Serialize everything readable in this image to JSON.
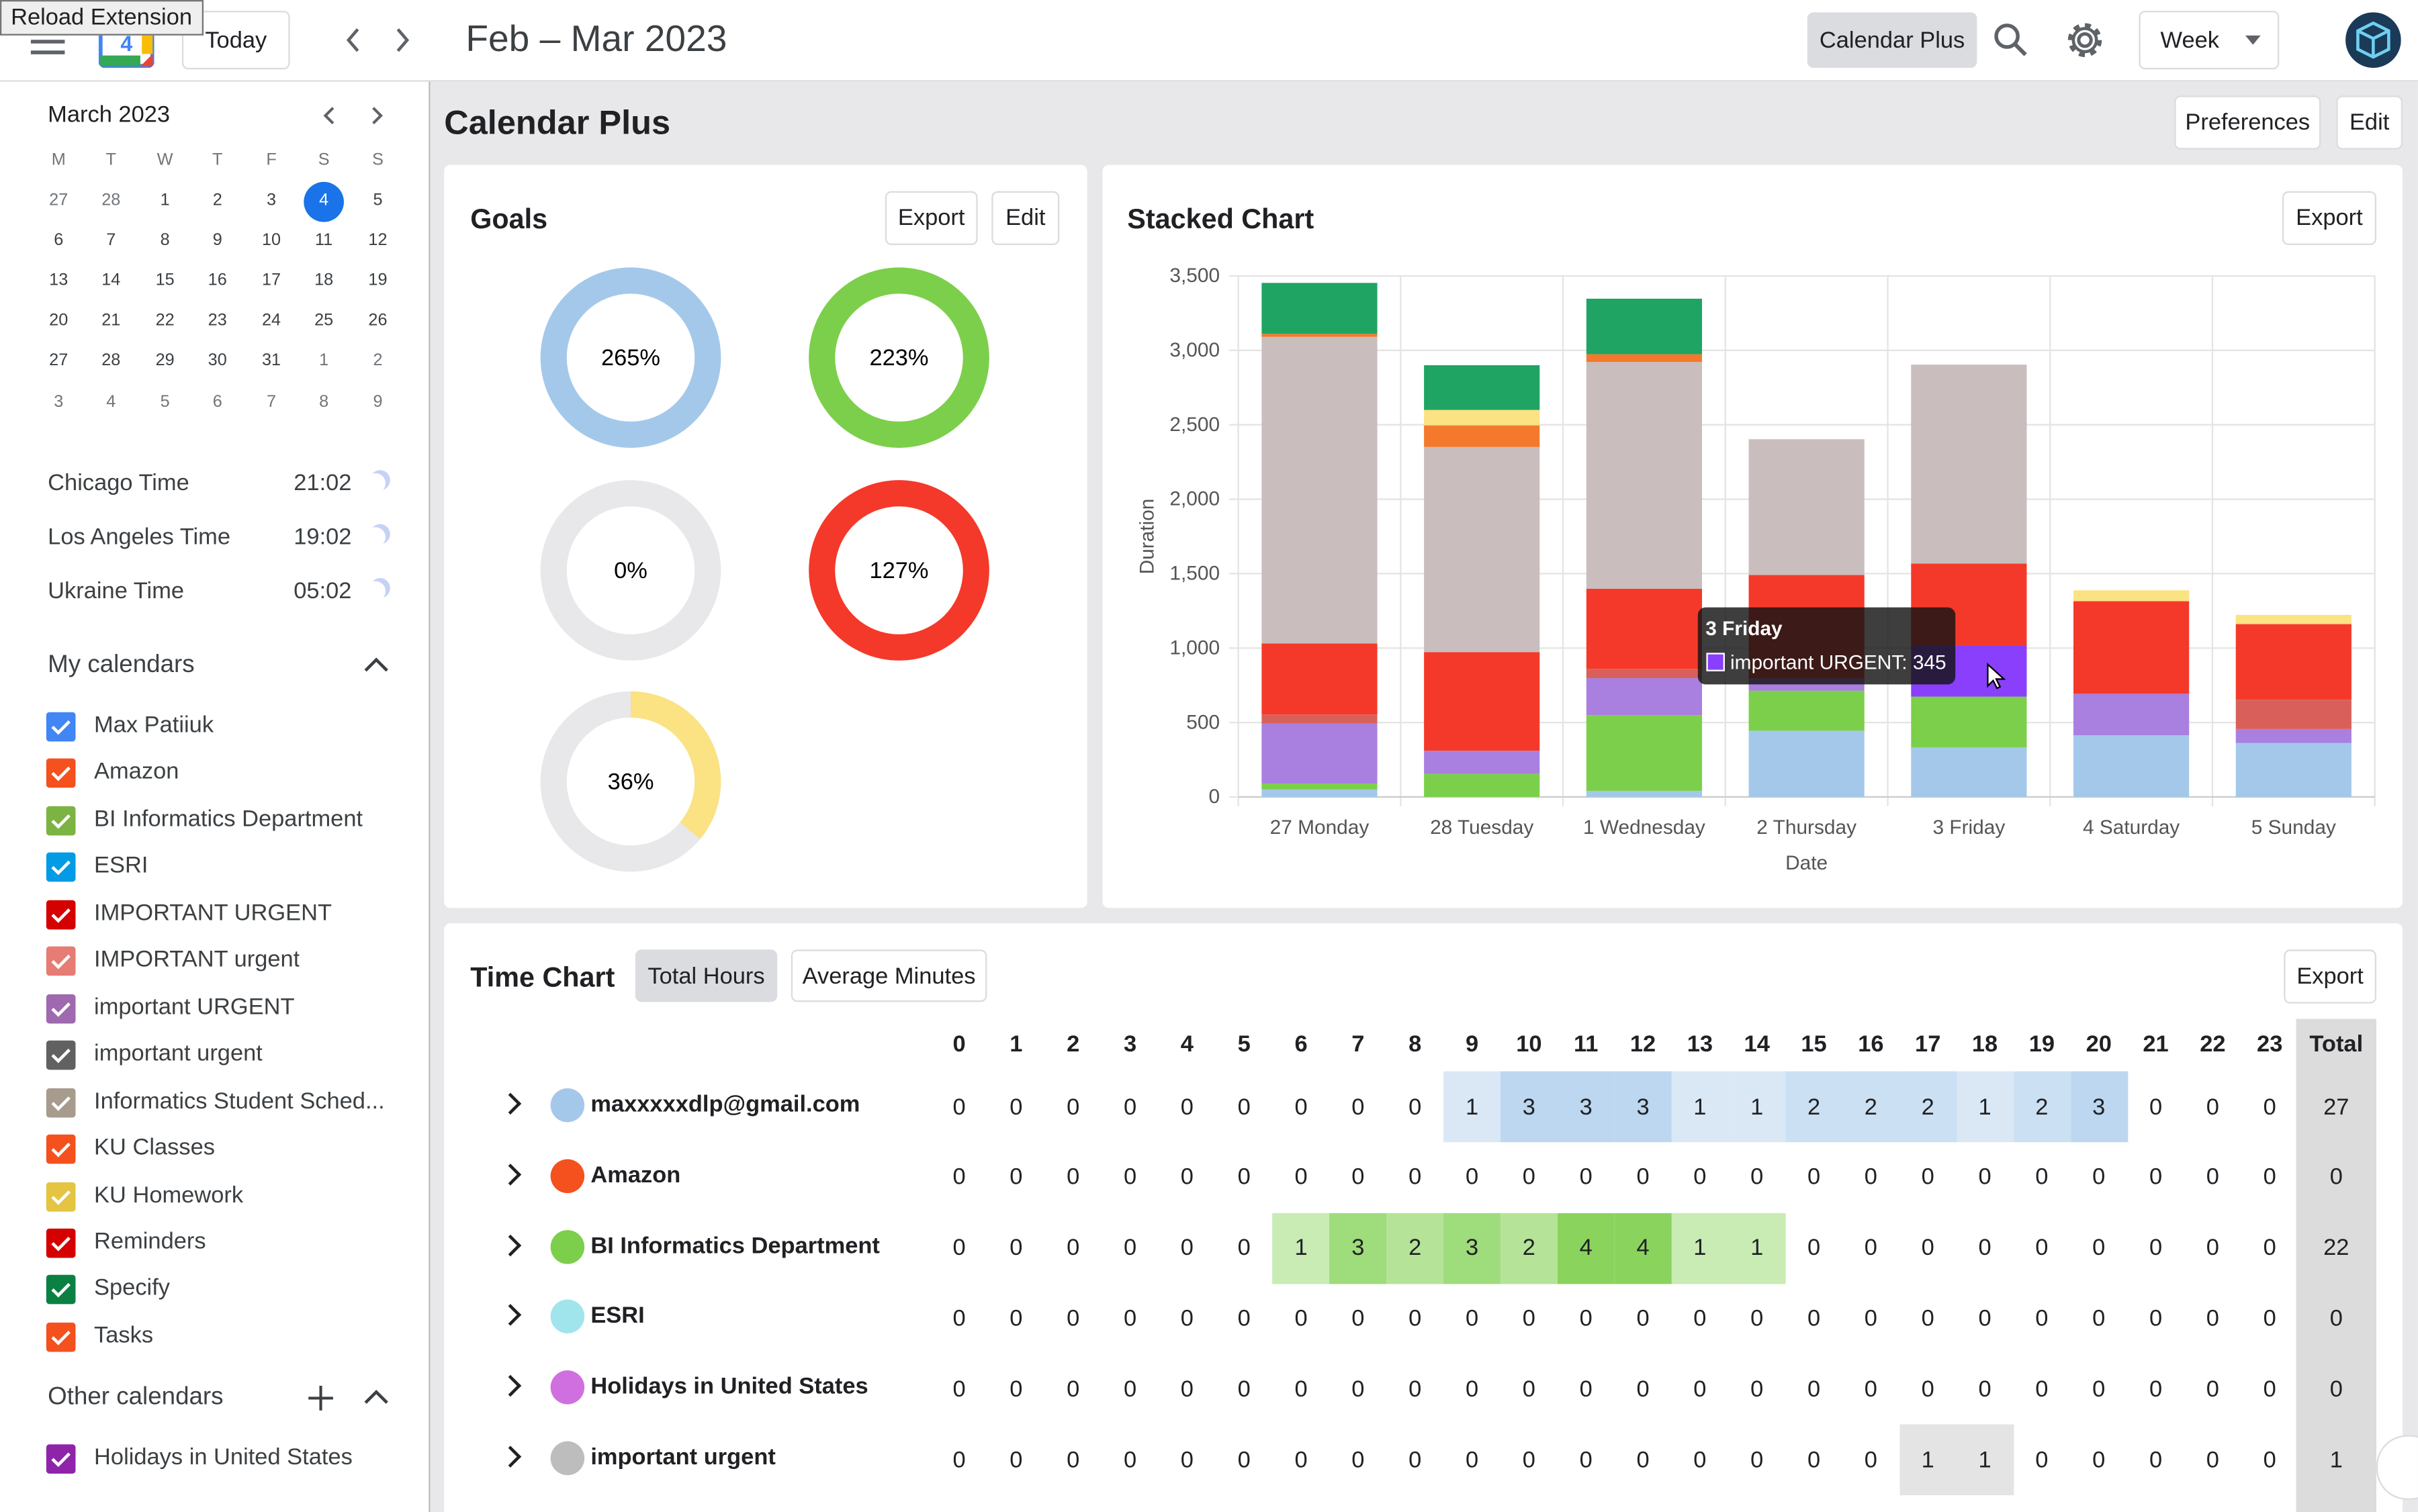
{
  "topbar": {
    "reload": "Reload Extension",
    "today": "Today",
    "range": "Feb – Mar 2023",
    "app": "Calendar Plus",
    "view": "Week"
  },
  "mini_calendar": {
    "month": "March 2023",
    "weekdays": [
      "M",
      "T",
      "W",
      "T",
      "F",
      "S",
      "S"
    ],
    "weeks": [
      [
        27,
        28,
        1,
        2,
        3,
        4,
        5
      ],
      [
        6,
        7,
        8,
        9,
        10,
        11,
        12
      ],
      [
        13,
        14,
        15,
        16,
        17,
        18,
        19
      ],
      [
        20,
        21,
        22,
        23,
        24,
        25,
        26
      ],
      [
        27,
        28,
        29,
        30,
        31,
        1,
        2
      ],
      [
        3,
        4,
        5,
        6,
        7,
        8,
        9
      ]
    ]
  },
  "clocks": [
    {
      "name": "Chicago Time",
      "time": "21:02"
    },
    {
      "name": "Los Angeles Time",
      "time": "19:02"
    },
    {
      "name": "Ukraine Time",
      "time": "05:02"
    }
  ],
  "my_calendars": {
    "title": "My calendars",
    "items": [
      {
        "name": "Max Patiiuk",
        "color": "#4285f4"
      },
      {
        "name": "Amazon",
        "color": "#f4511e"
      },
      {
        "name": "BI Informatics Department",
        "color": "#7cb342"
      },
      {
        "name": "ESRI",
        "color": "#039be5"
      },
      {
        "name": "IMPORTANT URGENT",
        "color": "#d50000"
      },
      {
        "name": "IMPORTANT urgent",
        "color": "#e67c73"
      },
      {
        "name": "important URGENT",
        "color": "#9e69af"
      },
      {
        "name": "important urgent",
        "color": "#616161"
      },
      {
        "name": "Informatics Student Sched...",
        "color": "#a79b8e"
      },
      {
        "name": "KU Classes",
        "color": "#f4511e"
      },
      {
        "name": "KU Homework",
        "color": "#e4c441"
      },
      {
        "name": "Reminders",
        "color": "#d50000"
      },
      {
        "name": "Specify",
        "color": "#0b8043"
      },
      {
        "name": "Tasks",
        "color": "#f4511e"
      }
    ]
  },
  "other_calendars": {
    "title": "Other calendars",
    "items": [
      {
        "name": "Holidays in United States",
        "color": "#8e24aa"
      }
    ]
  },
  "page": {
    "title": "Calendar Plus",
    "preferences": "Preferences",
    "edit": "Edit"
  },
  "goals": {
    "title": "Goals",
    "export": "Export",
    "edit": "Edit",
    "rings": [
      {
        "value": 265,
        "label": "265%",
        "color": "#a4c8ea"
      },
      {
        "value": 223,
        "label": "223%",
        "color": "#7ccf4a"
      },
      {
        "value": 0,
        "label": "0%",
        "color": "#a4c8ea"
      },
      {
        "value": 127,
        "label": "127%",
        "color": "#f4392a"
      },
      {
        "value": 36,
        "label": "36%",
        "color": "#fbe283"
      }
    ]
  },
  "chart_data": {
    "type": "stacked_bar",
    "title": "Stacked Chart",
    "export": "Export",
    "x_label": "Date",
    "y_label": "Duration",
    "grid": true,
    "categories": [
      "27 Monday",
      "28 Tuesday",
      "1 Wednesday",
      "2 Thursday",
      "3 Friday",
      "4 Saturday",
      "5 Sunday"
    ],
    "ylim": [
      0,
      3500
    ],
    "yticks": [
      0,
      500,
      {
        "value": 1000,
        "label": "1,000"
      },
      {
        "value": 1500,
        "label": "1,500"
      },
      {
        "value": 2000,
        "label": "2,000"
      },
      {
        "value": 2500,
        "label": "2,500"
      },
      {
        "value": 3000,
        "label": "3,000"
      },
      {
        "value": 3500,
        "label": "3,500"
      }
    ],
    "series": [
      {
        "color": "#a4c8ea",
        "values": [
          50,
          0,
          41,
          445,
          332,
          414,
          363
        ]
      },
      {
        "color": "#7ccf4a",
        "values": [
          40,
          155,
          508,
          269,
          342,
          0,
          0
        ]
      },
      {
        "color": "#a97fe0",
        "values": [
          404,
          155,
          249,
          83,
          345,
          279,
          93
        ]
      },
      {
        "color": "#d9605a",
        "values": [
          60,
          0,
          62,
          0,
          0,
          0,
          197
        ]
      },
      {
        "color": "#f4392a",
        "values": [
          477,
          663,
          539,
          694,
          549,
          622,
          508
        ]
      },
      {
        "color": "#c9bdbd",
        "values": [
          2060,
          1378,
          1523,
          912,
          1336,
          0,
          0
        ]
      },
      {
        "color": "#f4792c",
        "values": [
          20,
          145,
          52,
          0,
          0,
          0,
          0
        ]
      },
      {
        "color": "#fbe283",
        "values": [
          0,
          104,
          0,
          0,
          0,
          73,
          62
        ]
      },
      {
        "color": "#1fa463",
        "values": [
          342,
          300,
          373,
          0,
          0,
          0,
          0
        ]
      }
    ],
    "tooltip": {
      "title": "3 Friday",
      "text": "important URGENT: 345",
      "color": "#8a3ffc"
    }
  },
  "time_chart": {
    "title": "Time Chart",
    "tabs": [
      "Total Hours",
      "Average Minutes"
    ],
    "export": "Export",
    "hours": [
      0,
      1,
      2,
      3,
      4,
      5,
      6,
      7,
      8,
      9,
      10,
      11,
      12,
      13,
      14,
      15,
      16,
      17,
      18,
      19,
      20,
      21,
      22,
      23
    ],
    "total_label": "Total",
    "rows": [
      {
        "name": "maxxxxxdlp@gmail.com",
        "color": "#a4c8ea",
        "values": [
          0,
          0,
          0,
          0,
          0,
          0,
          0,
          0,
          0,
          1,
          3,
          3,
          3,
          1,
          1,
          2,
          2,
          2,
          1,
          2,
          3,
          0,
          0,
          0
        ],
        "total": 27
      },
      {
        "name": "Amazon",
        "color": "#f4511e",
        "values": [
          0,
          0,
          0,
          0,
          0,
          0,
          0,
          0,
          0,
          0,
          0,
          0,
          0,
          0,
          0,
          0,
          0,
          0,
          0,
          0,
          0,
          0,
          0,
          0
        ],
        "total": 0
      },
      {
        "name": "BI Informatics Department",
        "color": "#7ccf4a",
        "values": [
          0,
          0,
          0,
          0,
          0,
          0,
          1,
          3,
          2,
          3,
          2,
          4,
          4,
          1,
          1,
          0,
          0,
          0,
          0,
          0,
          0,
          0,
          0,
          0
        ],
        "total": 22
      },
      {
        "name": "ESRI",
        "color": "#a0e4ec",
        "values": [
          0,
          0,
          0,
          0,
          0,
          0,
          0,
          0,
          0,
          0,
          0,
          0,
          0,
          0,
          0,
          0,
          0,
          0,
          0,
          0,
          0,
          0,
          0,
          0
        ],
        "total": 0
      },
      {
        "name": "Holidays in United States",
        "color": "#d070e0",
        "values": [
          0,
          0,
          0,
          0,
          0,
          0,
          0,
          0,
          0,
          0,
          0,
          0,
          0,
          0,
          0,
          0,
          0,
          0,
          0,
          0,
          0,
          0,
          0,
          0
        ],
        "total": 0
      },
      {
        "name": "important urgent",
        "color": "#bdbdbd",
        "values": [
          0,
          0,
          0,
          0,
          0,
          0,
          0,
          0,
          0,
          0,
          0,
          0,
          0,
          0,
          0,
          0,
          0,
          1,
          1,
          0,
          0,
          0,
          0,
          0
        ],
        "total": 1
      }
    ]
  }
}
